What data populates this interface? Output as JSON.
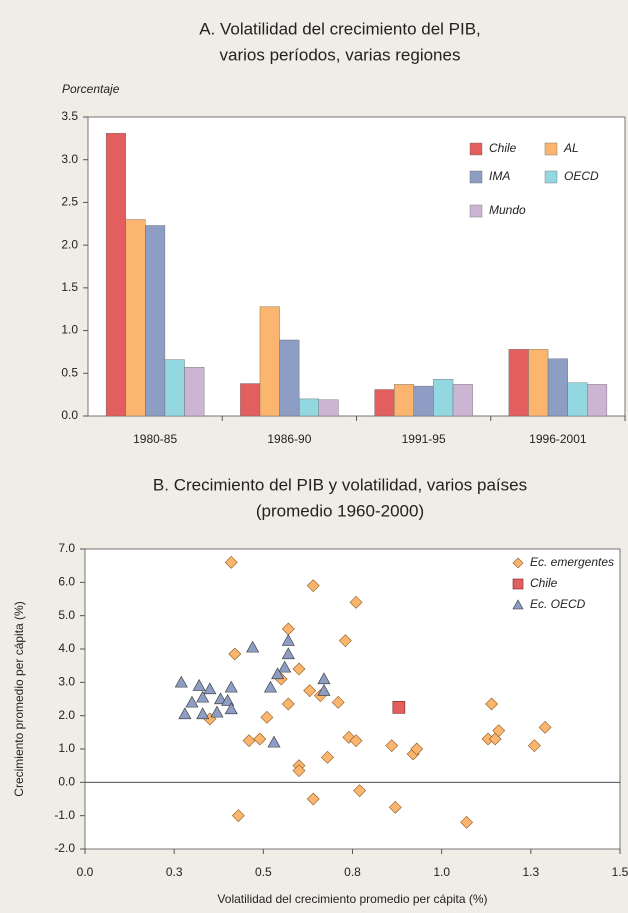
{
  "chart_data": [
    {
      "type": "bar",
      "title": [
        "A. Volatilidad del crecimiento del PIB,",
        "varios períodos, varias regiones"
      ],
      "ylabel": "Porcentaje",
      "categories": [
        "1980-85",
        "1986-90",
        "1991-95",
        "1996-2001"
      ],
      "series": [
        {
          "name": "Chile",
          "color": "#e35f5f",
          "values": [
            3.31,
            0.38,
            0.31,
            0.78
          ]
        },
        {
          "name": "AL",
          "color": "#fbb56e",
          "values": [
            2.3,
            1.28,
            0.37,
            0.78
          ]
        },
        {
          "name": "IMA",
          "color": "#8d9dc3",
          "values": [
            2.23,
            0.89,
            0.35,
            0.67
          ]
        },
        {
          "name": "OECD",
          "color": "#93d8e0",
          "values": [
            0.66,
            0.2,
            0.43,
            0.39
          ]
        },
        {
          "name": "Mundo",
          "color": "#cbb5d3",
          "values": [
            0.57,
            0.19,
            0.37,
            0.37
          ]
        }
      ],
      "ylim": [
        0,
        3.5
      ],
      "yticks": [
        {
          "value": 0,
          "label": "0.0"
        },
        0.5,
        {
          "value": 1,
          "label": "1.0"
        },
        1.5,
        {
          "value": 2,
          "label": "2.0"
        },
        2.5,
        {
          "value": 3,
          "label": "3.0"
        },
        3.5
      ],
      "grid": false,
      "legend": "upper right"
    },
    {
      "type": "scatter",
      "title": [
        "B. Crecimiento del PIB y volatilidad, varios países",
        "(promedio 1960-2000)"
      ],
      "xlabel": "Volatilidad del crecimiento promedio per cápita (%)",
      "ylabel": "Crecimiento promedio per cápita (%)",
      "series": [
        {
          "name": "Ec. emergentes",
          "color": "#fbb56e",
          "marker": "diamond",
          "x": [
            0.41,
            0.64,
            0.76,
            0.57,
            0.73,
            0.42,
            0.6,
            0.55,
            0.63,
            0.66,
            0.71,
            0.57,
            0.51,
            0.35,
            1.14,
            0.74,
            0.76,
            0.46,
            0.49,
            0.68,
            0.6,
            0.6,
            0.86,
            0.92,
            0.93,
            1.13,
            1.15,
            1.16,
            1.26,
            1.29,
            0.77,
            0.64,
            0.87,
            0.43,
            1.07
          ],
          "values": [
            6.6,
            5.9,
            5.4,
            4.6,
            4.25,
            3.85,
            3.4,
            3.1,
            2.75,
            2.6,
            2.4,
            2.35,
            1.95,
            1.9,
            2.35,
            1.35,
            1.25,
            1.25,
            1.3,
            0.75,
            0.5,
            0.35,
            1.1,
            0.85,
            1.0,
            1.3,
            1.3,
            1.55,
            1.1,
            1.65,
            -0.25,
            -0.5,
            -0.75,
            -1.0,
            -1.2
          ]
        },
        {
          "name": "Chile",
          "color": "#e35f5f",
          "marker": "square",
          "x": [
            0.88
          ],
          "values": [
            2.25
          ]
        },
        {
          "name": "Ec. OECD",
          "color": "#8d9dc3",
          "marker": "triangle",
          "x": [
            0.27,
            0.47,
            0.57,
            0.57,
            0.56,
            0.54,
            0.52,
            0.67,
            0.67,
            0.32,
            0.35,
            0.3,
            0.33,
            0.38,
            0.37,
            0.41,
            0.4,
            0.41,
            0.28,
            0.33,
            0.53
          ],
          "values": [
            3.0,
            4.05,
            4.25,
            3.85,
            3.45,
            3.25,
            2.85,
            3.1,
            2.75,
            2.9,
            2.8,
            2.4,
            2.55,
            2.5,
            2.1,
            2.85,
            2.45,
            2.2,
            2.05,
            2.05,
            1.2
          ]
        }
      ],
      "xlim": [
        0,
        1.5
      ],
      "xticks": [
        {
          "value": 0,
          "label": "0.0"
        },
        {
          "value": 0.25,
          "label": "0.3"
        },
        0.5,
        {
          "value": 0.75,
          "label": "0.8"
        },
        {
          "value": 1,
          "label": "1.0"
        },
        {
          "value": 1.25,
          "label": "1.3"
        },
        1.5
      ],
      "ylim": [
        -2,
        7
      ],
      "yticks": [
        {
          "value": -2,
          "label": "-2.0"
        },
        {
          "value": -1,
          "label": "-1.0"
        },
        {
          "value": 0,
          "label": "0.0"
        },
        {
          "value": 1,
          "label": "1.0"
        },
        {
          "value": 2,
          "label": "2.0"
        },
        {
          "value": 3,
          "label": "3.0"
        },
        {
          "value": 4,
          "label": "4.0"
        },
        {
          "value": 5,
          "label": "5.0"
        },
        {
          "value": 6,
          "label": "6.0"
        },
        {
          "value": 7,
          "label": "7.0"
        }
      ],
      "grid": false,
      "legend": "upper right"
    }
  ]
}
